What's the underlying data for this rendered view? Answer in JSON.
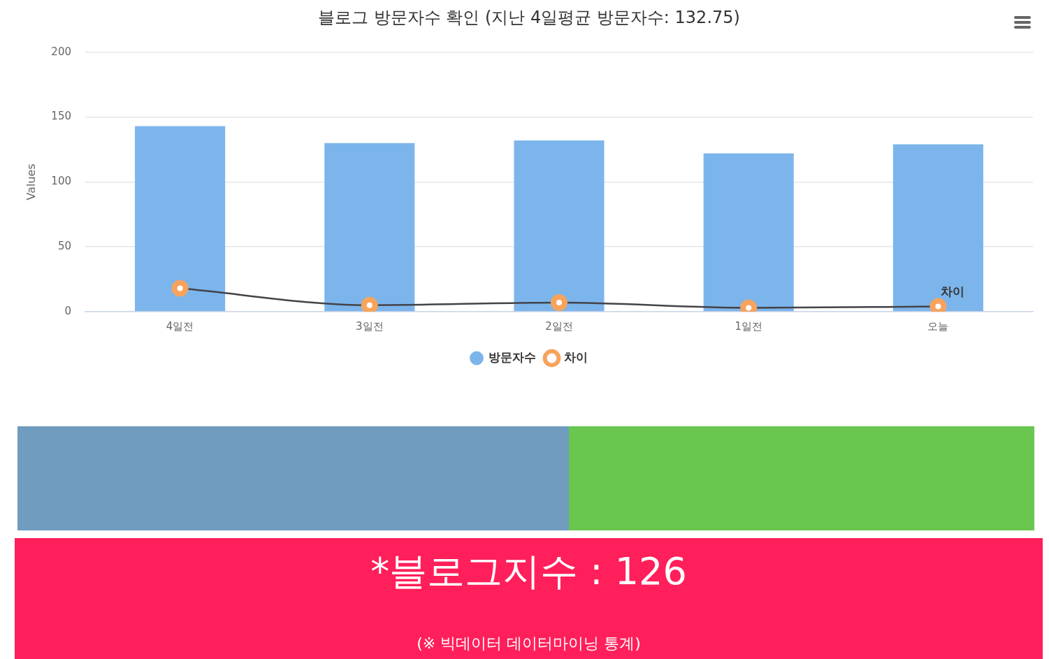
{
  "chart_data": {
    "type": "bar",
    "title": "블로그 방문자수 확인 (지난 4일평균 방문자수: 132.75)",
    "ylabel": "Values",
    "categories": [
      "4일전",
      "3일전",
      "2일전",
      "1일전",
      "오늘"
    ],
    "series": [
      {
        "name": "방문자수",
        "color": "#7cb5ec",
        "values": [
          143,
          130,
          132,
          122,
          129
        ]
      },
      {
        "name": "차이",
        "type": "line",
        "color": "#f7a35c",
        "marker": "circle",
        "values": [
          18,
          5,
          7,
          3,
          4
        ]
      }
    ],
    "ylim": [
      0,
      200
    ],
    "yticks": [
      0,
      50,
      100,
      150,
      200
    ],
    "grid": "y",
    "legend": "bottom",
    "annotations": [
      {
        "text": "차이",
        "x": "오늘",
        "y": 4
      },
      "*블로그지수 : 126",
      "(※ 빅데이터 데이터마이닝 통계)"
    ]
  }
}
